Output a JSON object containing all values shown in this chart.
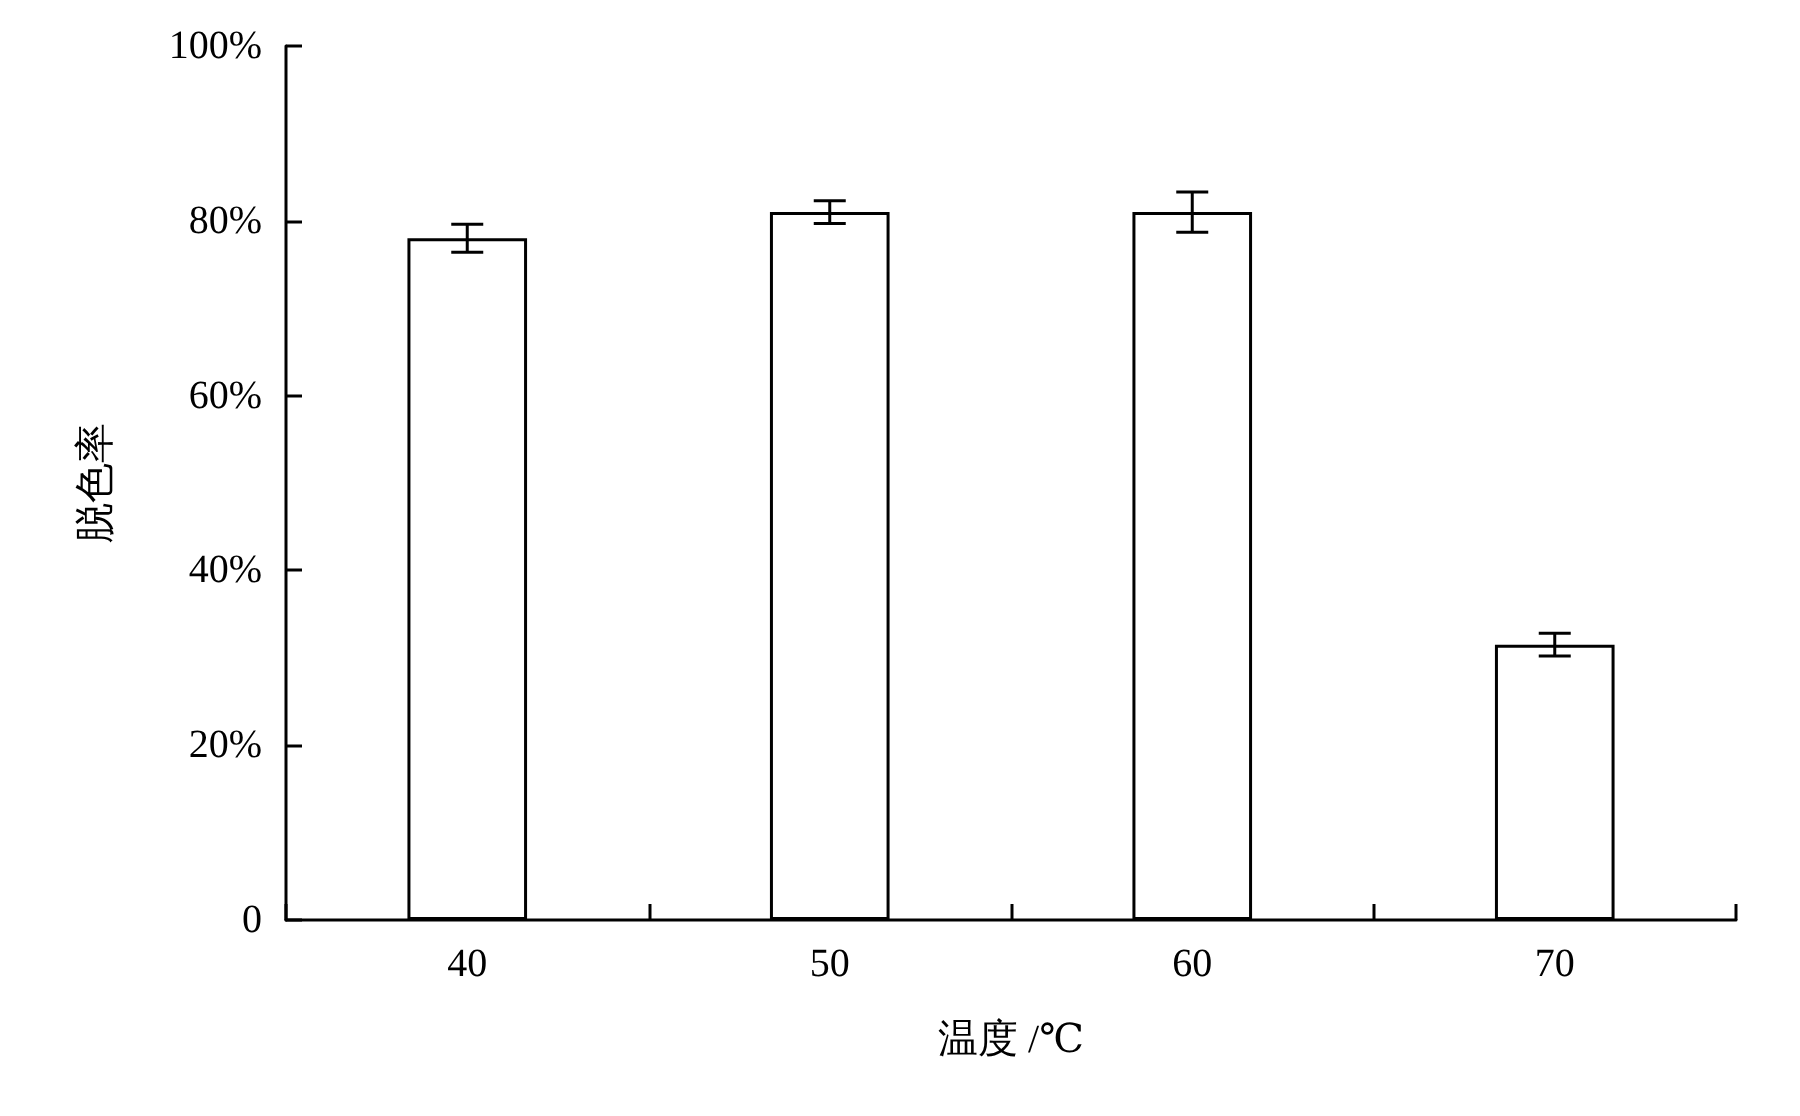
{
  "chart_data": {
    "type": "bar",
    "xlabel": "温度 /℃",
    "ylabel": "脱色率",
    "categories": [
      "40",
      "50",
      "60",
      "70"
    ],
    "values": [
      78,
      81,
      81,
      31.5
    ],
    "color": "#ffffff",
    "errors": [
      1.6,
      1.3,
      2.3,
      1.3
    ],
    "ylim": [
      0,
      100
    ],
    "yticks": [
      0,
      {
        "value": 20,
        "label": "20%"
      },
      {
        "value": 40,
        "label": "40%"
      },
      {
        "value": 60,
        "label": "60%"
      },
      {
        "value": 80,
        "label": "80%"
      },
      {
        "value": 100,
        "label": "100%"
      }
    ],
    "grid": false
  }
}
